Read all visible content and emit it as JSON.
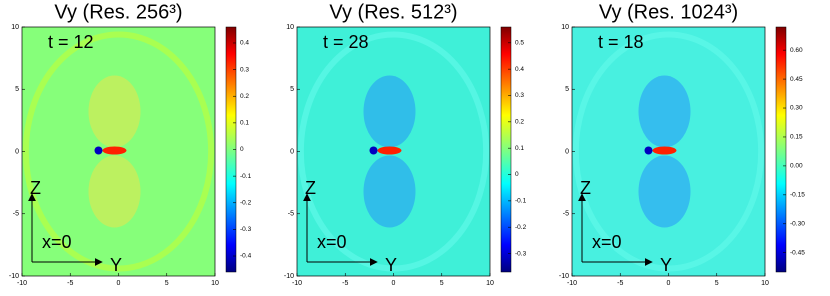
{
  "chart_data": [
    {
      "type": "image",
      "title": "Vy (Res. 256³)",
      "annotations": [
        "t = 12",
        "Z",
        "x=0",
        "Y"
      ],
      "xlim": [
        -10,
        10
      ],
      "xticks": [
        -10,
        -5,
        0,
        5,
        10
      ],
      "ylim": [
        -10,
        10
      ],
      "yticks": [
        -10,
        -5,
        0,
        5,
        10
      ],
      "colorbar": {
        "lim": [
          -0.46,
          0.46
        ],
        "ticks": [
          -0.4,
          -0.3,
          -0.2,
          -0.1,
          0.0,
          0.1,
          0.2,
          0.3,
          0.4
        ]
      }
    },
    {
      "type": "image",
      "title": "Vy (Res. 512³)",
      "annotations": [
        "t = 28",
        "Z",
        "x=0",
        "Y"
      ],
      "xlim": [
        -10,
        10
      ],
      "xticks": [
        -10,
        -5,
        0,
        5,
        10
      ],
      "ylim": [
        -10,
        10
      ],
      "yticks": [
        -10,
        -5,
        0,
        5,
        10
      ],
      "colorbar": {
        "lim": [
          -0.37,
          0.56
        ],
        "ticks": [
          -0.3,
          -0.2,
          -0.1,
          0.0,
          0.1,
          0.2,
          0.3,
          0.4,
          0.5
        ]
      }
    },
    {
      "type": "image",
      "title": "Vy (Res. 1024³)",
      "annotations": [
        "t = 18",
        "Z",
        "x=0",
        "Y"
      ],
      "xlim": [
        -10,
        10
      ],
      "xticks": [
        -10,
        -5,
        0,
        5,
        10
      ],
      "ylim": [
        -10,
        10
      ],
      "yticks": [
        -10,
        -5,
        0,
        5,
        10
      ],
      "colorbar": {
        "lim": [
          -0.55,
          0.72
        ],
        "ticks": [
          -0.45,
          {
            "value": -0.3,
            "label": "-0.30"
          },
          -0.15,
          {
            "value": 0.0,
            "label": "0.00"
          },
          0.15,
          {
            "value": 0.3,
            "label": "0.30"
          },
          0.45,
          {
            "value": 0.6,
            "label": "0.60"
          }
        ]
      }
    }
  ]
}
